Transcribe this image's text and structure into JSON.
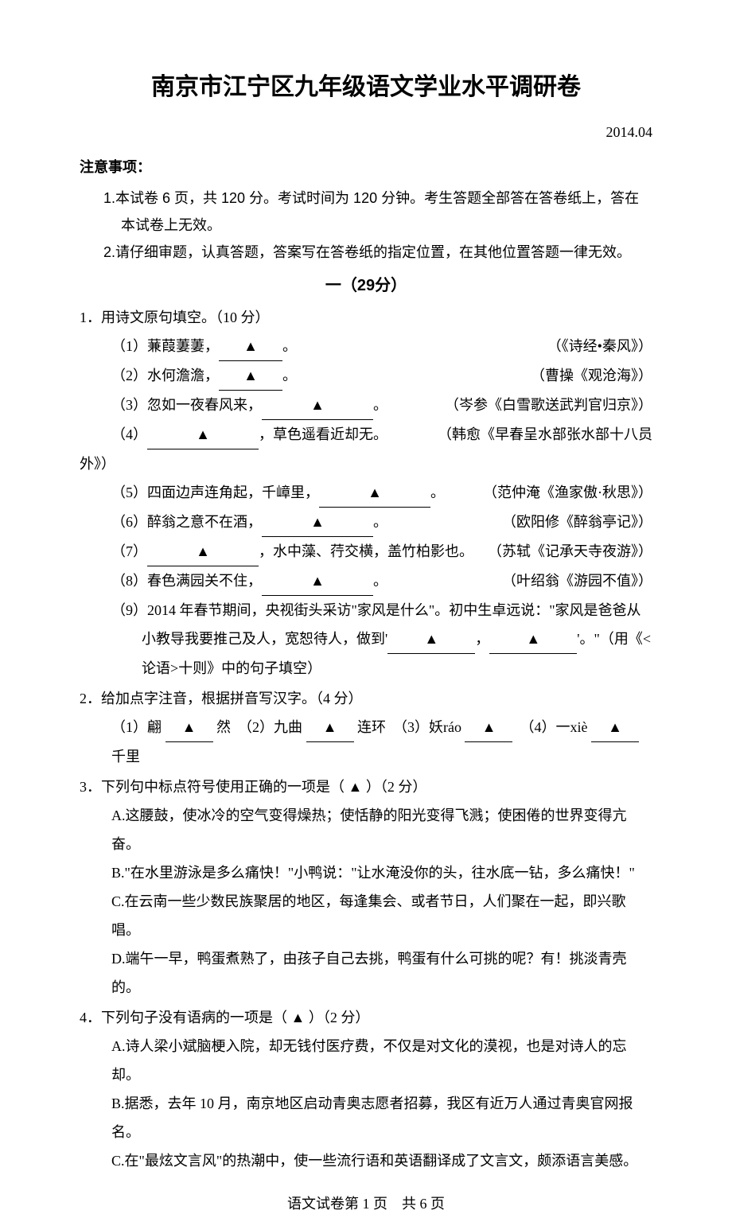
{
  "title": "南京市江宁区九年级语文学业水平调研卷",
  "date": "2014.04",
  "notice": {
    "header": "注意事项：",
    "items": [
      "1.本试卷 6 页，共 120 分。考试时间为 120 分钟。考生答题全部答在答卷纸上，答在本试卷上无效。",
      "2.请仔细审题，认真答题，答案写在答卷纸的指定位置，在其他位置答题一律无效。"
    ]
  },
  "section1": {
    "header": "一（29分）",
    "q1": {
      "stem": "1．用诗文原句填空。（10 分）",
      "subs": [
        {
          "pre": "（1）蒹葭萋萋，",
          "post": "。",
          "source": "（《诗经•秦风》）",
          "blank": "blank"
        },
        {
          "pre": "（2）水何澹澹，",
          "post": "。",
          "source": "（曹操《观沧海》）",
          "blank": "blank"
        },
        {
          "pre": "（3）忽如一夜春风来，",
          "post": "。",
          "source": "（岑参《白雪歌送武判官归京》）",
          "blank": "blank-wide"
        }
      ],
      "sub4": {
        "pre": "（4）",
        "post": "，草色遥看近却无。",
        "source": "（韩愈《早春呈水部张水部十八员",
        "source2": "外》）",
        "blank": "blank-wide"
      },
      "subs2": [
        {
          "pre": "（5）四面边声连角起，千嶂里，",
          "post": "。",
          "source": "（范仲淹《渔家傲·秋思》）",
          "blank": "blank-wide"
        },
        {
          "pre": "（6）醉翁之意不在酒，",
          "post": "。",
          "source": "（欧阳修《醉翁亭记》）",
          "blank": "blank-wide"
        },
        {
          "pre": "（7）",
          "post": "，水中藻、荇交横，盖竹柏影也。",
          "source": "（苏轼《记承天寺夜游》）",
          "blank": "blank-wide",
          "prefix": true
        },
        {
          "pre": "（8）春色满园关不住，",
          "post": "。",
          "source": "（叶绍翁《游园不值》）",
          "blank": "blank-wide"
        }
      ],
      "sub9": {
        "line1a": "（9）2014 年春节期间，央视街头采访\"家风是什么\"。初中生卓远说：\"家风是爸爸从",
        "line2a": "小教导我要推己及人，宽恕待人，做到'",
        "line2b": "，",
        "line2c": "'。\"（用《<",
        "line3": "论语>十则》中的句子填空）"
      }
    },
    "q2": {
      "stem": "2．给加点字注音，根据拼音写汉字。（4 分）",
      "items": {
        "i1a": "（1）翩 ",
        "i1b": " 然",
        "i2a": "　（2）九曲 ",
        "i2b": " 连环",
        "i3a": "　（3）妖ráo ",
        "i4a": "　（4）一xiè ",
        "i4b": " 千里"
      }
    },
    "q3": {
      "stem": "3．下列句中标点符号使用正确的一项是（ ▲ ）（2 分）",
      "choices": [
        "A.这腰鼓，使冰冷的空气变得燥热；使恬静的阳光变得飞溅；使困倦的世界变得亢奋。",
        "B.\"在水里游泳是多么痛快！\"小鸭说：\"让水淹没你的头，往水底一钻，多么痛快！\"",
        "C.在云南一些少数民族聚居的地区，每逢集会、或者节日，人们聚在一起，即兴歌唱。",
        "D.端午一早，鸭蛋煮熟了，由孩子自己去挑，鸭蛋有什么可挑的呢？有！挑淡青壳的。"
      ]
    },
    "q4": {
      "stem": "4．下列句子没有语病的一项是（ ▲ ）（2 分）",
      "choices": [
        "A.诗人梁小斌脑梗入院，却无钱付医疗费，不仅是对文化的漠视，也是对诗人的忘却。",
        "B.据悉，去年 10 月，南京地区启动青奥志愿者招募，我区有近万人通过青奥官网报名。",
        "C.在\"最炫文言风\"的热潮中，使一些流行语和英语翻译成了文言文，颇添语言美感。"
      ]
    }
  },
  "footer": "语文试卷第 1 页　共 6 页",
  "tri": "▲"
}
